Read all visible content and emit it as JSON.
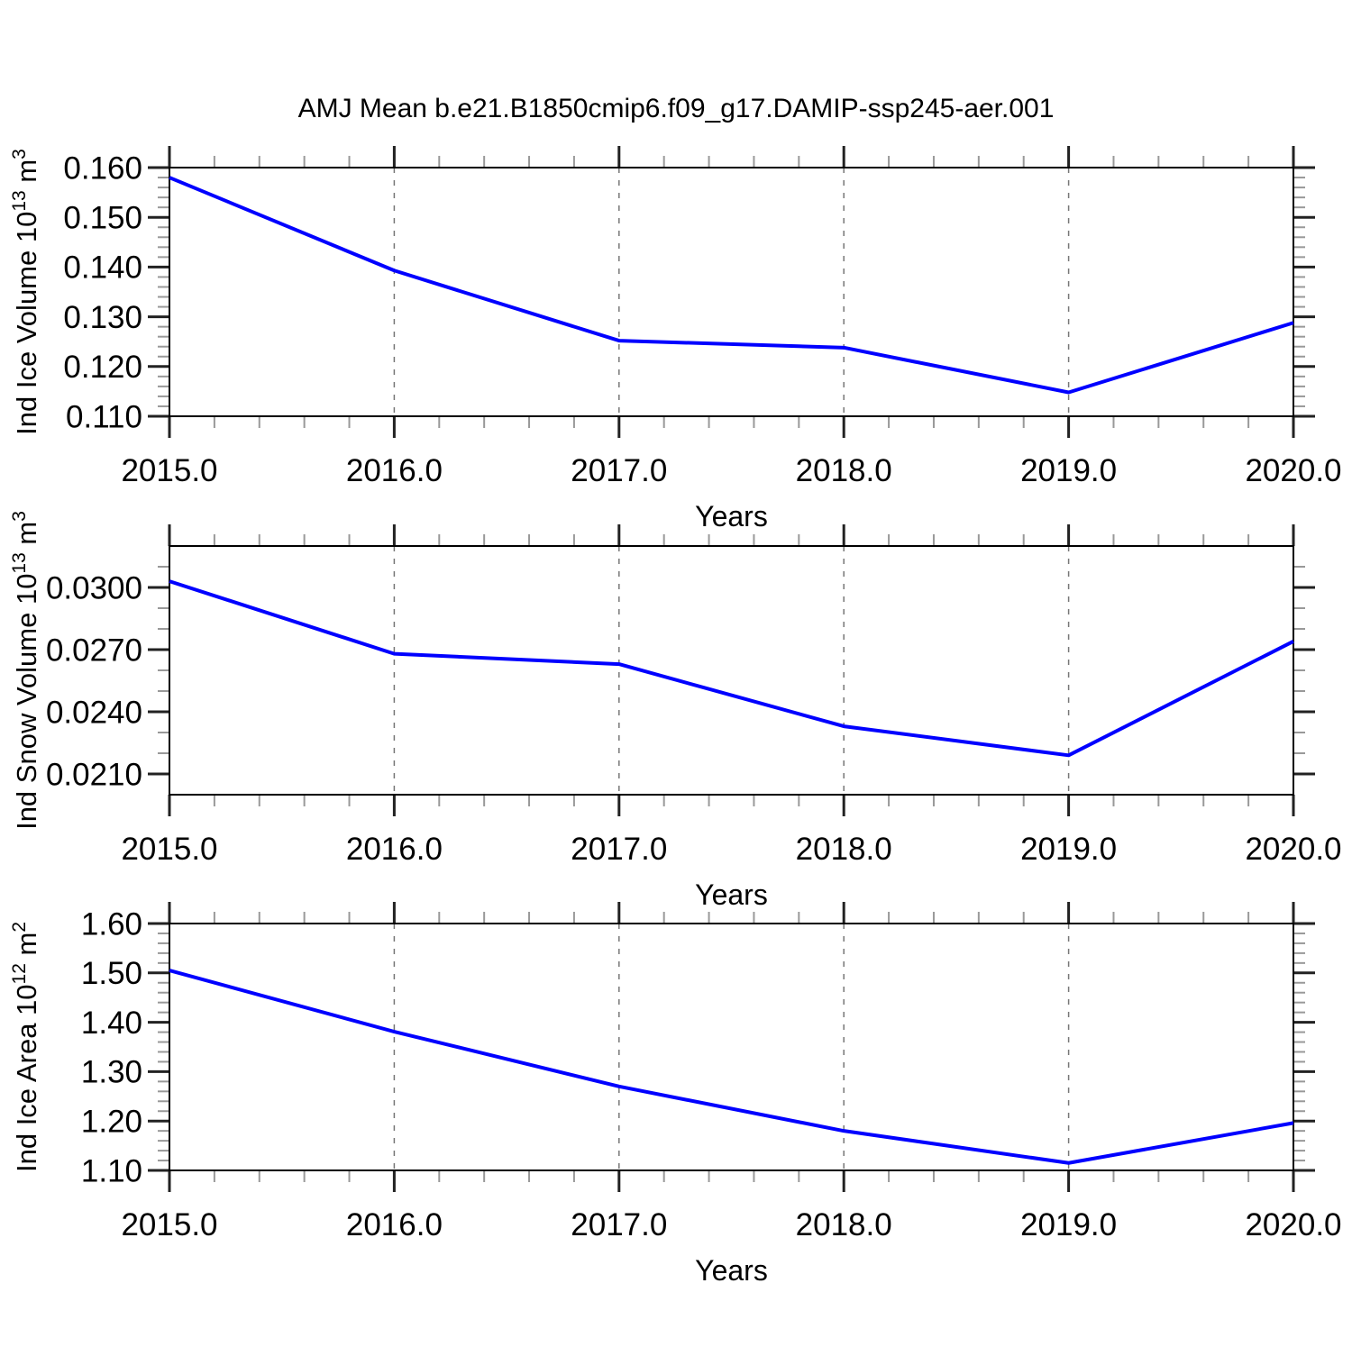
{
  "title": "AMJ Mean b.e21.B1850cmip6.f09_g17.DAMIP-ssp245-aer.001",
  "line_color": "#0000ff",
  "chart_data": [
    {
      "type": "line",
      "name": "ind-ice-volume",
      "ylabel": "Ind Ice Volume 10^13 m^3",
      "ylabel_parts": [
        {
          "text": "Ind Ice Volume 10",
          "sup": false
        },
        {
          "text": "13",
          "sup": true
        },
        {
          "text": " m",
          "sup": false
        },
        {
          "text": "3",
          "sup": true
        }
      ],
      "xlabel": "Years",
      "x": [
        2015.0,
        2016.0,
        2017.0,
        2018.0,
        2019.0,
        2020.0
      ],
      "values": [
        0.158,
        0.1393,
        0.1252,
        0.1238,
        0.1148,
        0.1288
      ],
      "xlim": [
        2015.0,
        2020.0
      ],
      "ylim": [
        0.11,
        0.16
      ],
      "xticks": [
        2015.0,
        2016.0,
        2017.0,
        2018.0,
        2019.0,
        2020.0
      ],
      "xtick_labels": [
        "2015.0",
        "2016.0",
        "2017.0",
        "2018.0",
        "2019.0",
        "2020.0"
      ],
      "x_minor_step": 0.2,
      "yticks": [
        0.11,
        0.12,
        0.13,
        0.14,
        0.15,
        0.16
      ],
      "ytick_labels": [
        "0.110",
        "0.120",
        "0.130",
        "0.140",
        "0.150",
        "0.160"
      ],
      "y_minor_step": 0.002,
      "gridlines_x": [
        2016.0,
        2017.0,
        2018.0,
        2019.0
      ],
      "grid": "vertical-dashed",
      "legend": "none"
    },
    {
      "type": "line",
      "name": "ind-snow-volume",
      "ylabel": "Ind Snow Volume 10^13 m^3",
      "ylabel_parts": [
        {
          "text": "Ind Snow Volume 10",
          "sup": false
        },
        {
          "text": "13",
          "sup": true
        },
        {
          "text": " m",
          "sup": false
        },
        {
          "text": "3",
          "sup": true
        }
      ],
      "xlabel": "Years",
      "x": [
        2015.0,
        2016.0,
        2017.0,
        2018.0,
        2019.0,
        2020.0
      ],
      "values": [
        0.0303,
        0.0268,
        0.0263,
        0.0233,
        0.0219,
        0.0274
      ],
      "xlim": [
        2015.0,
        2020.0
      ],
      "ylim": [
        0.02,
        0.032
      ],
      "xticks": [
        2015.0,
        2016.0,
        2017.0,
        2018.0,
        2019.0,
        2020.0
      ],
      "xtick_labels": [
        "2015.0",
        "2016.0",
        "2017.0",
        "2018.0",
        "2019.0",
        "2020.0"
      ],
      "x_minor_step": 0.2,
      "yticks": [
        0.021,
        0.024,
        0.027,
        0.03
      ],
      "ytick_labels": [
        "0.0210",
        "0.0240",
        "0.0270",
        "0.0300"
      ],
      "y_minor_step": 0.001,
      "gridlines_x": [
        2016.0,
        2017.0,
        2018.0,
        2019.0
      ],
      "grid": "vertical-dashed",
      "legend": "none"
    },
    {
      "type": "line",
      "name": "ind-ice-area",
      "ylabel": "Ind Ice Area 10^12 m^2",
      "ylabel_parts": [
        {
          "text": "Ind Ice Area 10",
          "sup": false
        },
        {
          "text": "12",
          "sup": true
        },
        {
          "text": " m",
          "sup": false
        },
        {
          "text": "2",
          "sup": true
        }
      ],
      "xlabel": "Years",
      "x": [
        2015.0,
        2016.0,
        2017.0,
        2018.0,
        2019.0,
        2020.0
      ],
      "values": [
        1.505,
        1.381,
        1.27,
        1.18,
        1.115,
        1.196
      ],
      "xlim": [
        2015.0,
        2020.0
      ],
      "ylim": [
        1.1,
        1.6
      ],
      "xticks": [
        2015.0,
        2016.0,
        2017.0,
        2018.0,
        2019.0,
        2020.0
      ],
      "xtick_labels": [
        "2015.0",
        "2016.0",
        "2017.0",
        "2018.0",
        "2019.0",
        "2020.0"
      ],
      "x_minor_step": 0.2,
      "yticks": [
        1.1,
        1.2,
        1.3,
        1.4,
        1.5,
        1.6
      ],
      "ytick_labels": [
        "1.10",
        "1.20",
        "1.30",
        "1.40",
        "1.50",
        "1.60"
      ],
      "y_minor_step": 0.02,
      "gridlines_x": [
        2016.0,
        2017.0,
        2018.0,
        2019.0
      ],
      "grid": "vertical-dashed",
      "legend": "none"
    }
  ]
}
